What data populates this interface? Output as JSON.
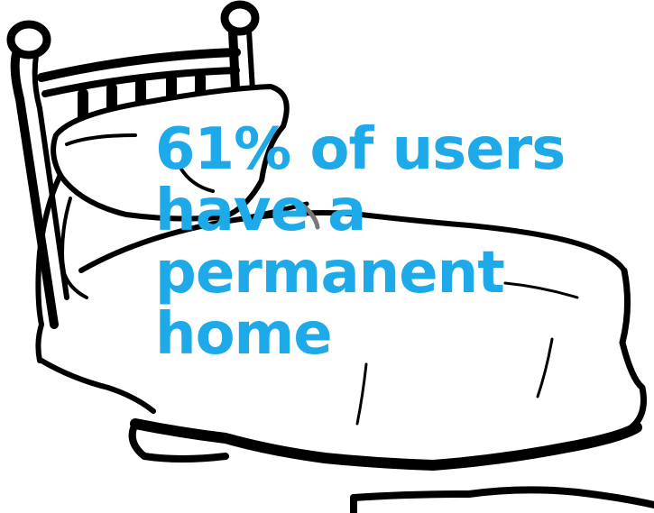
{
  "colors": {
    "text": "#1ea9e8",
    "outline": "#000000",
    "background": "#ffffff"
  },
  "illustration": {
    "icon": "bed-icon"
  },
  "stat": {
    "lines": [
      "61% of users",
      "have a",
      "permanent",
      "home"
    ]
  }
}
